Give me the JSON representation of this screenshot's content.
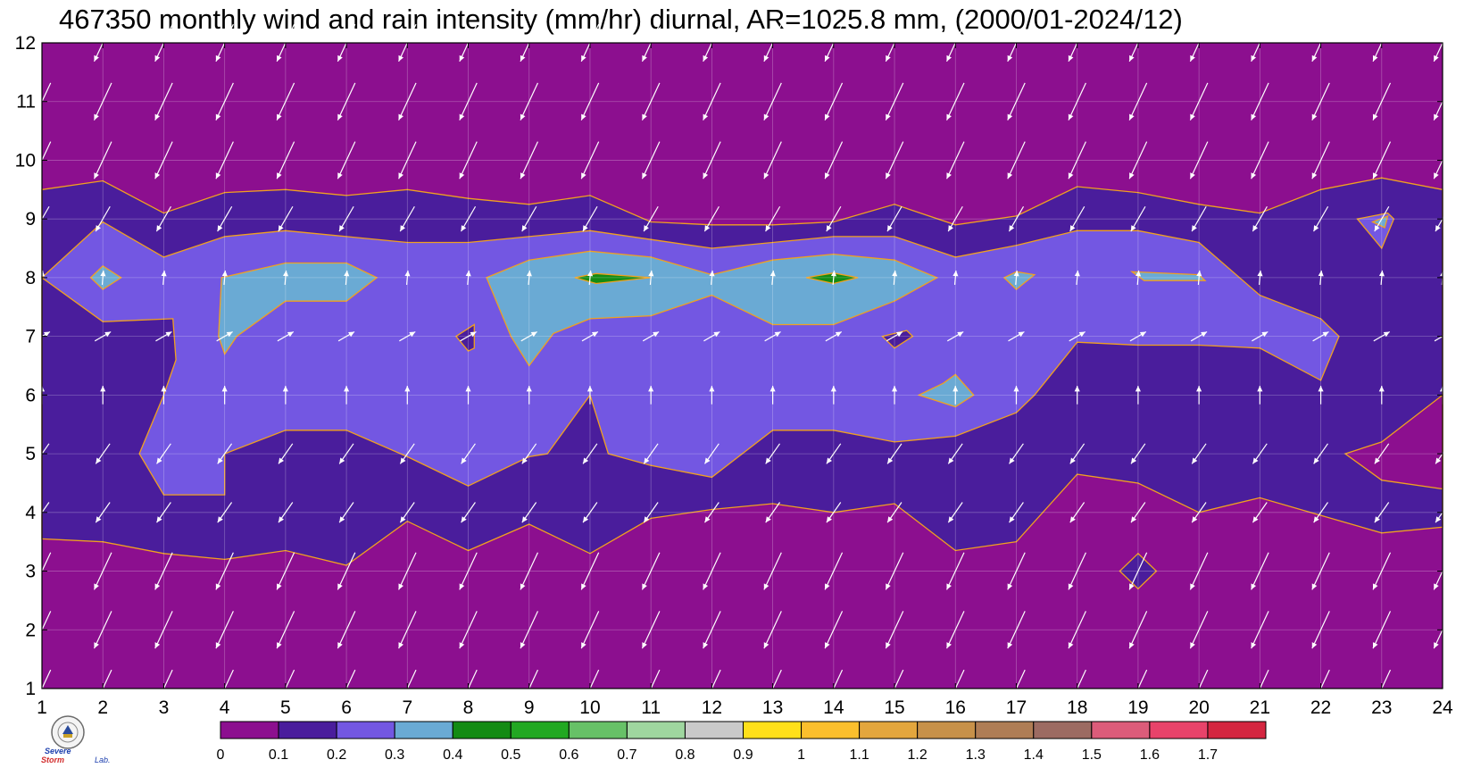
{
  "title": "467350 monthly wind and rain intensity (mm/hr) diurnal, AR=1025.8 mm, (2000/01-2024/12)",
  "chart_data": {
    "type": "heatmap",
    "title": "467350 monthly wind and rain intensity (mm/hr) diurnal, AR=1025.8 mm, (2000/01-2024/12)",
    "xlabel": "",
    "ylabel": "",
    "xlim": [
      1,
      24
    ],
    "ylim": [
      1,
      12
    ],
    "x_ticks": [
      "1",
      "2",
      "3",
      "4",
      "5",
      "6",
      "7",
      "8",
      "9",
      "10",
      "11",
      "12",
      "13",
      "14",
      "15",
      "16",
      "17",
      "18",
      "19",
      "20",
      "21",
      "22",
      "23",
      "24"
    ],
    "y_ticks": [
      "1",
      "2",
      "3",
      "4",
      "5",
      "6",
      "7",
      "8",
      "9",
      "10",
      "11",
      "12"
    ],
    "grid": true,
    "colorbar": {
      "orientation": "horizontal",
      "position": "bottom",
      "levels": [
        "0",
        "0.1",
        "0.2",
        "0.3",
        "0.4",
        "0.5",
        "0.6",
        "0.7",
        "0.8",
        "0.9",
        "1",
        "1.1",
        "1.2",
        "1.3",
        "1.4",
        "1.5",
        "1.6",
        "1.7"
      ],
      "colors": [
        "#8c0f8f",
        "#4a1d9c",
        "#7357e2",
        "#6aaad4",
        "#138b13",
        "#22a822",
        "#67c167",
        "#9fd69f",
        "#c9c9c9",
        "#ffe01a",
        "#fbbf2d",
        "#e3a63d",
        "#c79149",
        "#af7d55",
        "#9c6b62",
        "#dc5c7a",
        "#e8436a",
        "#d42640"
      ]
    },
    "contours": [
      {
        "level": 0.1,
        "label": "0.1",
        "boundary_month_by_hour": {
          "lower": [
            3.55,
            3.5,
            3.3,
            3.2,
            3.35,
            3.1,
            3.85,
            3.35,
            3.8,
            3.3,
            3.9,
            4.05,
            4.15,
            4.0,
            4.15,
            3.35,
            3.5,
            4.65,
            4.5,
            4.0,
            4.25,
            3.95,
            3.65,
            3.75
          ],
          "upper": [
            9.5,
            9.65,
            9.1,
            9.45,
            9.5,
            9.4,
            9.5,
            9.35,
            9.25,
            9.4,
            8.95,
            8.9,
            8.9,
            8.95,
            9.25,
            8.9,
            9.05,
            9.55,
            9.45,
            9.25,
            9.1,
            9.5,
            9.7,
            9.5
          ]
        }
      },
      {
        "level": 0.2,
        "label": "0.2",
        "boundary_month_by_hour": {
          "lower": [
            8.0,
            7.25,
            5.05,
            4.3,
            5.4,
            5.4,
            4.95,
            4.45,
            4.95,
            6.0,
            4.8,
            4.6,
            5.4,
            5.4,
            5.2,
            5.3,
            5.7,
            6.9,
            6.85,
            6.85,
            6.8,
            6.25,
            null,
            null
          ],
          "upper": [
            8.0,
            8.95,
            8.35,
            8.7,
            8.8,
            8.7,
            8.6,
            8.6,
            8.7,
            8.8,
            8.65,
            8.5,
            8.6,
            8.7,
            8.7,
            8.35,
            8.55,
            8.8,
            8.8,
            8.6,
            7.7,
            7.3,
            null,
            null
          ]
        }
      },
      {
        "level": 0.3,
        "label": "0.3",
        "regions": [
          "hour 2, month 8",
          "hours 4-6.5, months 6.7-8.3",
          "hours 8.3-15.7, months 6.5-8.45",
          "hour 15.5-16.3, month 6",
          "hour 17, month 8",
          "hours 19-20, month 8",
          "hour 23, month 8.8"
        ]
      },
      {
        "level": 0.4,
        "label": "0.4",
        "regions": [
          "hour 10, month 8",
          "hour 14, month 8"
        ]
      }
    ],
    "wind_field": {
      "description": "wind vectors at every hour (1-24) and month (1-12) grid point",
      "pattern": [
        {
          "months": [
            1,
            2,
            3,
            10,
            11,
            12
          ],
          "direction_deg_from_north": 205,
          "relative_speed": 1.0
        },
        {
          "months": [
            4,
            5
          ],
          "direction_deg_from_north": 215,
          "relative_speed": 0.6
        },
        {
          "months": [
            6
          ],
          "direction_deg_from_north": 0,
          "relative_speed": 0.45
        },
        {
          "months": [
            7
          ],
          "direction_deg_from_north": 60,
          "relative_speed": 0.45
        },
        {
          "months": [
            8
          ],
          "direction_deg_from_north": 5,
          "relative_speed": 0.35
        },
        {
          "months": [
            9
          ],
          "direction_deg_from_north": 210,
          "relative_speed": 0.7
        }
      ]
    }
  },
  "logo": {
    "line1": "Severe",
    "line2": "Storm",
    "line3": "Lab."
  }
}
